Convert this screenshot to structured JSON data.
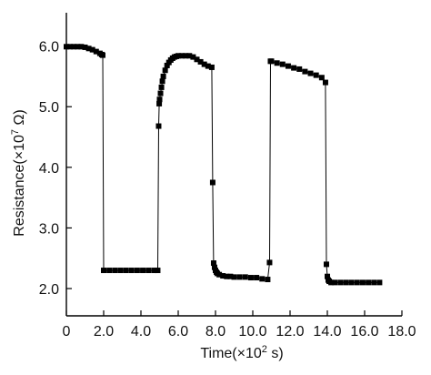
{
  "chart_data": {
    "type": "scatter",
    "xlabel": "Time(×10",
    "xlabel_sup": "2",
    "xlabel_unit": " s)",
    "ylabel": "Resistance(×10",
    "ylabel_sup": "7",
    "ylabel_unit": " Ω)",
    "xlim": [
      0,
      18
    ],
    "ylim": [
      1.55,
      6.55
    ],
    "x_ticks": [
      {
        "value": 0,
        "label": "0"
      },
      {
        "value": 2,
        "label": "2.0"
      },
      {
        "value": 4,
        "label": "4.0"
      },
      {
        "value": 6,
        "label": "6.0"
      },
      {
        "value": 8,
        "label": "8.0"
      },
      {
        "value": 10,
        "label": "10.0"
      },
      {
        "value": 12,
        "label": "12.0"
      },
      {
        "value": 14,
        "label": "14.0"
      },
      {
        "value": 16,
        "label": "16.0"
      },
      {
        "value": 18,
        "label": "18.0"
      }
    ],
    "y_ticks": [
      {
        "value": 2,
        "label": "2.0"
      },
      {
        "value": 3,
        "label": "3.0"
      },
      {
        "value": 4,
        "label": "4.0"
      },
      {
        "value": 5,
        "label": "5.0"
      },
      {
        "value": 6,
        "label": "6.0"
      }
    ],
    "marker": "square",
    "color": "#000000",
    "segments": [
      {
        "x": [
          0.0,
          0.2,
          0.4,
          0.6,
          0.8,
          1.0,
          1.2,
          1.4,
          1.6,
          1.8,
          1.9,
          1.95
        ],
        "y": [
          5.99,
          5.99,
          5.99,
          5.99,
          5.99,
          5.98,
          5.96,
          5.94,
          5.91,
          5.88,
          5.86,
          5.85
        ]
      },
      {
        "x": [
          2.0,
          2.3,
          2.6,
          2.9,
          3.2,
          3.5,
          3.8,
          4.1,
          4.4,
          4.7,
          4.9
        ],
        "y": [
          2.3,
          2.3,
          2.3,
          2.3,
          2.3,
          2.3,
          2.3,
          2.3,
          2.3,
          2.3,
          2.3
        ]
      },
      {
        "x": [
          4.95,
          4.98,
          5.0,
          5.05,
          5.1,
          5.15,
          5.2,
          5.3,
          5.4,
          5.5,
          5.6,
          5.7,
          5.8,
          5.9,
          6.0,
          6.2,
          6.4,
          6.6,
          6.8,
          7.0,
          7.2,
          7.4,
          7.6,
          7.8
        ],
        "y": [
          4.68,
          5.05,
          5.12,
          5.22,
          5.32,
          5.42,
          5.5,
          5.6,
          5.68,
          5.73,
          5.77,
          5.8,
          5.82,
          5.83,
          5.84,
          5.84,
          5.84,
          5.84,
          5.82,
          5.78,
          5.74,
          5.7,
          5.67,
          5.65
        ]
      },
      {
        "x": [
          7.85,
          7.9,
          7.95,
          8.0,
          8.05,
          8.1,
          8.2,
          8.4,
          8.6,
          8.8,
          9.0,
          9.3,
          9.6,
          9.9,
          10.2,
          10.5,
          10.8
        ],
        "y": [
          3.75,
          2.42,
          2.35,
          2.3,
          2.27,
          2.25,
          2.23,
          2.21,
          2.2,
          2.2,
          2.19,
          2.19,
          2.19,
          2.18,
          2.18,
          2.16,
          2.15
        ]
      },
      {
        "x": [
          10.9,
          10.95,
          11.0,
          11.3,
          11.6,
          11.9,
          12.2,
          12.5,
          12.8,
          13.1,
          13.4,
          13.7,
          13.9
        ],
        "y": [
          2.43,
          5.75,
          5.75,
          5.72,
          5.7,
          5.67,
          5.64,
          5.62,
          5.58,
          5.55,
          5.52,
          5.48,
          5.4
        ]
      },
      {
        "x": [
          13.95,
          14.0,
          14.05,
          14.1,
          14.2,
          14.4,
          14.7,
          15.0,
          15.3,
          15.6,
          15.9,
          16.2,
          16.5,
          16.8
        ],
        "y": [
          2.4,
          2.2,
          2.14,
          2.12,
          2.1,
          2.1,
          2.1,
          2.1,
          2.1,
          2.1,
          2.1,
          2.1,
          2.1,
          2.1
        ]
      }
    ]
  }
}
